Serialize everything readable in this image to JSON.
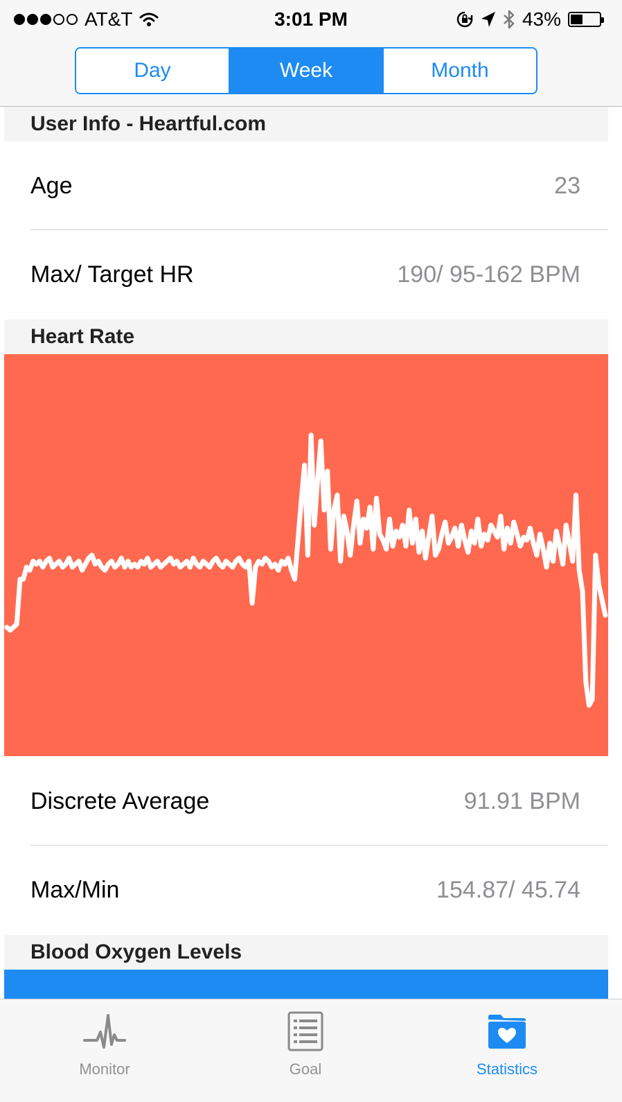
{
  "status_bar": {
    "carrier": "AT&T",
    "signal_filled": 3,
    "signal_total": 5,
    "time": "3:01 PM",
    "battery_percent": "43%",
    "battery_level": 0.43,
    "icons": [
      "wifi-icon",
      "orientation-lock-icon",
      "location-arrow-icon",
      "bluetooth-icon",
      "battery-icon"
    ]
  },
  "segmented_control": {
    "options": [
      "Day",
      "Week",
      "Month"
    ],
    "selected": "Week",
    "accent_color": "#1d8bf2"
  },
  "user_info": {
    "header": "User Info - Heartful.com",
    "rows": [
      {
        "label": "Age",
        "value": "23"
      },
      {
        "label": "Max/ Target HR",
        "value": "190/ 95-162 BPM"
      }
    ]
  },
  "heart_rate": {
    "header": "Heart Rate",
    "panel_color": "#ff6950",
    "rows": [
      {
        "label": "Discrete Average",
        "value": "91.91 BPM"
      },
      {
        "label": "Max/Min",
        "value": "154.87/ 45.74"
      }
    ]
  },
  "blood_oxygen": {
    "header": "Blood Oxygen Levels",
    "panel_color": "#1d8bf2"
  },
  "chart_data": {
    "type": "line",
    "title": "",
    "xlabel": "",
    "ylabel": "",
    "ylim": [
      40,
      160
    ],
    "grid": false,
    "line_color": "#ffffff",
    "series": [
      {
        "values": [
          76,
          75,
          76,
          77,
          92,
          92,
          96,
          95,
          98,
          97,
          98,
          96,
          98,
          99,
          96,
          97,
          98,
          96,
          97,
          99,
          96,
          97,
          98,
          95,
          97,
          99,
          100,
          97,
          98,
          96,
          95,
          97,
          98,
          96,
          97,
          99,
          96,
          98,
          96,
          97,
          96,
          98,
          97,
          99,
          96,
          97,
          98,
          96,
          97,
          98,
          99,
          97,
          98,
          96,
          97,
          98,
          96,
          99,
          97,
          96,
          98,
          97,
          96,
          98,
          99,
          97,
          96,
          98,
          97,
          96,
          98,
          99,
          97,
          96,
          98,
          84,
          96,
          98,
          97,
          99,
          98,
          96,
          97,
          95,
          98,
          97,
          99,
          95,
          92,
          105,
          118,
          130,
          100,
          140,
          110,
          125,
          138,
          115,
          128,
          102,
          115,
          120,
          98,
          113,
          108,
          100,
          110,
          118,
          104,
          112,
          109,
          116,
          102,
          119,
          107,
          105,
          102,
          112,
          103,
          108,
          106,
          110,
          103,
          115,
          104,
          112,
          101,
          108,
          99,
          106,
          113,
          100,
          102,
          107,
          111,
          104,
          106,
          109,
          103,
          110,
          105,
          101,
          108,
          104,
          112,
          103,
          107,
          105,
          110,
          108,
          106,
          113,
          102,
          109,
          104,
          111,
          107,
          103,
          106,
          105,
          109,
          104,
          100,
          107,
          102,
          96,
          104,
          98,
          108,
          103,
          97,
          110,
          104,
          98,
          120,
          95,
          88,
          58,
          50,
          52,
          100,
          90,
          85,
          80
        ]
      }
    ]
  },
  "tab_bar": {
    "tabs": [
      {
        "label": "Monitor",
        "icon": "heartbeat-icon",
        "active": false
      },
      {
        "label": "Goal",
        "icon": "list-icon",
        "active": false
      },
      {
        "label": "Statistics",
        "icon": "heart-folder-icon",
        "active": true
      }
    ],
    "active_color": "#1d8bf2",
    "inactive_color": "#929292"
  }
}
